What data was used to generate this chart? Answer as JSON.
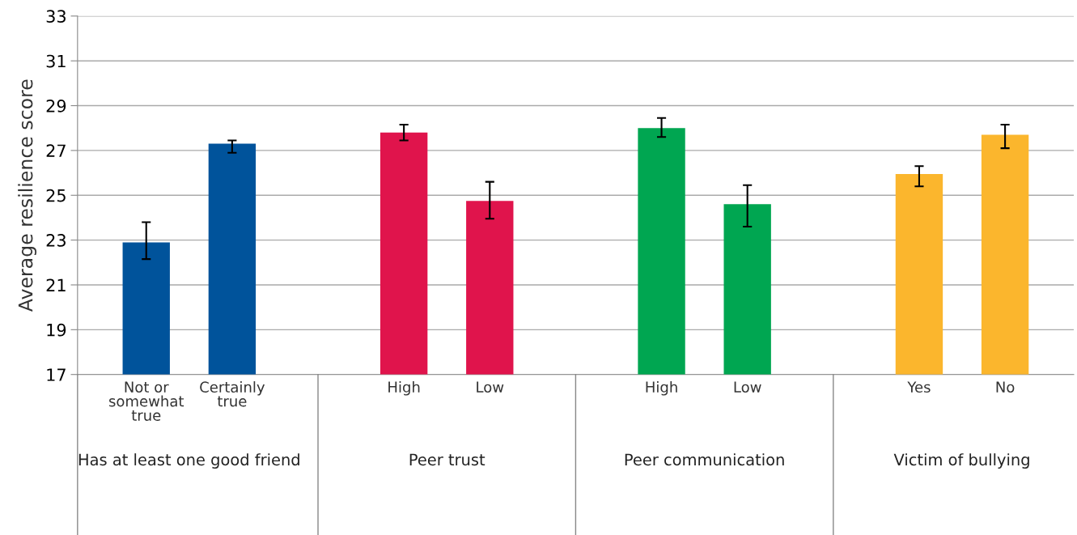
{
  "chart_data": {
    "type": "bar",
    "ylabel": "Average resilience score",
    "categories": [
      "Not or\nsomewhat\ntrue",
      "Certainly\ntrue",
      null,
      "High",
      "Low",
      null,
      "High",
      "Low",
      null,
      "Yes",
      "No"
    ],
    "values": [
      22.9,
      27.3,
      null,
      27.8,
      24.75,
      null,
      28.0,
      24.6,
      null,
      25.95,
      27.7
    ],
    "errors": [
      [
        22.15,
        23.8
      ],
      [
        26.9,
        27.45
      ],
      null,
      [
        27.45,
        28.15
      ],
      [
        23.95,
        25.6
      ],
      null,
      [
        27.6,
        28.45
      ],
      [
        23.6,
        25.45
      ],
      null,
      [
        25.4,
        26.3
      ],
      [
        27.1,
        28.15
      ]
    ],
    "colors": [
      "#00539b",
      "#00539b",
      null,
      "#e0144c",
      "#e0144c",
      null,
      "#00a651",
      "#00a651",
      null,
      "#fbb62d",
      "#fbb62d"
    ],
    "annotations": [
      "Has at least one good friend",
      "Peer trust",
      "Peer communication",
      "Victim of bullying"
    ],
    "ylim": [
      17,
      33
    ],
    "yticks": [
      17,
      19,
      21,
      23,
      25,
      27,
      29,
      31,
      33
    ],
    "grid": "y"
  }
}
